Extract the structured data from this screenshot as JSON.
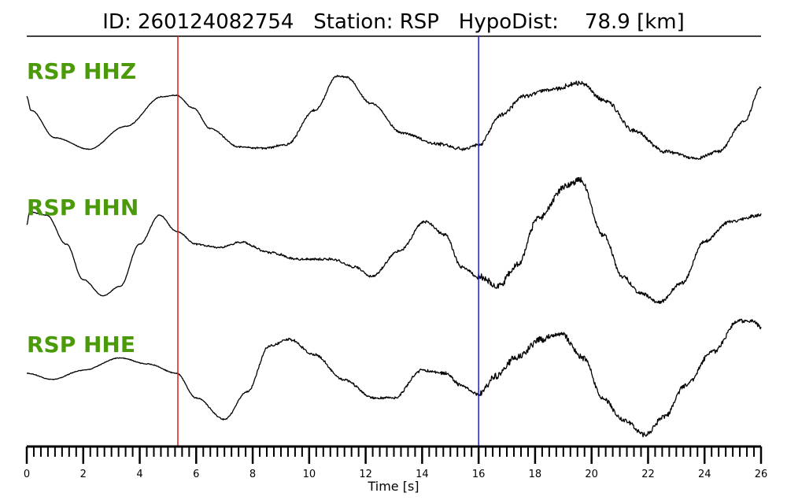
{
  "chart_data": {
    "type": "line",
    "title": "ID: 260124082754   Station: RSP   HypoDist:    78.9 [km]",
    "xlabel": "Time [s]",
    "xlim": [
      0,
      26
    ],
    "x_ticks": [
      0,
      2,
      4,
      6,
      8,
      10,
      12,
      14,
      16,
      18,
      20,
      22,
      24,
      26
    ],
    "x_tick_labels": [
      "0",
      "2",
      "4",
      "6",
      "8",
      "10",
      "12",
      "14",
      "16",
      "18",
      "20",
      "22",
      "24",
      "26"
    ],
    "minor_tick_step": 0.25,
    "grid": false,
    "label_color": "#4a9a0a",
    "markers": [
      {
        "time": 5.35,
        "color": "#e31a1c"
      },
      {
        "time": 16.0,
        "color": "#1f1fcf"
      }
    ],
    "series": [
      {
        "name": "RSP HHZ",
        "noise": [
          [
            0,
            0.4
          ],
          [
            5.3,
            0.5
          ],
          [
            7,
            0.8
          ],
          [
            9,
            1.2
          ],
          [
            12,
            1.0
          ],
          [
            16,
            2.2
          ],
          [
            20,
            2.6
          ],
          [
            26,
            1.5
          ]
        ],
        "y_min": -1.0,
        "y_max": 1.0,
        "points": [
          [
            0,
            0.35
          ],
          [
            0.15,
            0.05
          ],
          [
            1,
            -0.55
          ],
          [
            2.2,
            -0.8
          ],
          [
            3.5,
            -0.3
          ],
          [
            4.8,
            0.35
          ],
          [
            5.3,
            0.38
          ],
          [
            5.9,
            0.1
          ],
          [
            6.5,
            -0.35
          ],
          [
            7.5,
            -0.75
          ],
          [
            8.4,
            -0.78
          ],
          [
            9.2,
            -0.7
          ],
          [
            10.2,
            0.05
          ],
          [
            11.0,
            0.8
          ],
          [
            11.3,
            0.78
          ],
          [
            12.2,
            0.2
          ],
          [
            13.3,
            -0.45
          ],
          [
            14.5,
            -0.68
          ],
          [
            15.5,
            -0.8
          ],
          [
            16.0,
            -0.7
          ],
          [
            16.8,
            -0.05
          ],
          [
            17.6,
            0.35
          ],
          [
            18.5,
            0.5
          ],
          [
            19.6,
            0.65
          ],
          [
            20.5,
            0.25
          ],
          [
            21.5,
            -0.4
          ],
          [
            22.6,
            -0.85
          ],
          [
            23.7,
            -1.0
          ],
          [
            24.5,
            -0.85
          ],
          [
            25.4,
            -0.2
          ],
          [
            26,
            0.55
          ]
        ]
      },
      {
        "name": "RSP HHN",
        "noise": [
          [
            0,
            0.4
          ],
          [
            5.3,
            0.5
          ],
          [
            6,
            1.0
          ],
          [
            9,
            1.4
          ],
          [
            13,
            1.3
          ],
          [
            15.9,
            1.8
          ],
          [
            16,
            4.0
          ],
          [
            19,
            3.2
          ],
          [
            22,
            2.2
          ],
          [
            26,
            1.8
          ]
        ],
        "y_min": -1.0,
        "y_max": 1.0,
        "points": [
          [
            0,
            0.25
          ],
          [
            0.1,
            0.45
          ],
          [
            0.7,
            0.4
          ],
          [
            1.4,
            -0.05
          ],
          [
            2.0,
            -0.6
          ],
          [
            2.7,
            -0.85
          ],
          [
            3.3,
            -0.7
          ],
          [
            4.0,
            -0.05
          ],
          [
            4.7,
            0.4
          ],
          [
            5.3,
            0.15
          ],
          [
            6.0,
            -0.05
          ],
          [
            6.8,
            -0.1
          ],
          [
            7.6,
            -0.02
          ],
          [
            8.6,
            -0.18
          ],
          [
            9.6,
            -0.28
          ],
          [
            10.8,
            -0.28
          ],
          [
            11.6,
            -0.4
          ],
          [
            12.2,
            -0.55
          ],
          [
            13.2,
            -0.15
          ],
          [
            14.1,
            0.3
          ],
          [
            14.8,
            0.1
          ],
          [
            15.4,
            -0.4
          ],
          [
            16.0,
            -0.55
          ],
          [
            16.7,
            -0.7
          ],
          [
            17.4,
            -0.35
          ],
          [
            18.1,
            0.35
          ],
          [
            19.1,
            0.85
          ],
          [
            19.6,
            0.95
          ],
          [
            20.4,
            0.1
          ],
          [
            21.1,
            -0.55
          ],
          [
            21.7,
            -0.8
          ],
          [
            22.4,
            -0.95
          ],
          [
            23.2,
            -0.65
          ],
          [
            24.0,
            0.0
          ],
          [
            24.9,
            0.3
          ],
          [
            26,
            0.4
          ]
        ]
      },
      {
        "name": "RSP HHE",
        "noise": [
          [
            0,
            0.4
          ],
          [
            5.3,
            0.5
          ],
          [
            7,
            0.8
          ],
          [
            9,
            1.5
          ],
          [
            12,
            1.4
          ],
          [
            15.9,
            1.8
          ],
          [
            16,
            3.8
          ],
          [
            18.6,
            3.6
          ],
          [
            21,
            2.8
          ],
          [
            23,
            2.5
          ],
          [
            26,
            2.2
          ]
        ],
        "y_min": -1.0,
        "y_max": 1.0,
        "points": [
          [
            0,
            0.0
          ],
          [
            0.9,
            -0.1
          ],
          [
            2.0,
            0.05
          ],
          [
            3.3,
            0.25
          ],
          [
            4.3,
            0.15
          ],
          [
            5.3,
            0.0
          ],
          [
            6.0,
            -0.4
          ],
          [
            7.0,
            -0.75
          ],
          [
            7.8,
            -0.3
          ],
          [
            8.6,
            0.45
          ],
          [
            9.3,
            0.55
          ],
          [
            10.2,
            0.3
          ],
          [
            11.2,
            -0.1
          ],
          [
            12.3,
            -0.4
          ],
          [
            13.0,
            -0.4
          ],
          [
            14.0,
            0.05
          ],
          [
            14.8,
            0.0
          ],
          [
            15.4,
            -0.2
          ],
          [
            16.0,
            -0.35
          ],
          [
            16.6,
            -0.05
          ],
          [
            17.3,
            0.25
          ],
          [
            18.2,
            0.55
          ],
          [
            18.9,
            0.65
          ],
          [
            19.7,
            0.25
          ],
          [
            20.4,
            -0.4
          ],
          [
            21.1,
            -0.75
          ],
          [
            21.9,
            -1.0
          ],
          [
            22.6,
            -0.7
          ],
          [
            23.3,
            -0.2
          ],
          [
            24.3,
            0.35
          ],
          [
            25.2,
            0.85
          ],
          [
            25.7,
            0.85
          ],
          [
            26,
            0.75
          ]
        ]
      }
    ]
  }
}
